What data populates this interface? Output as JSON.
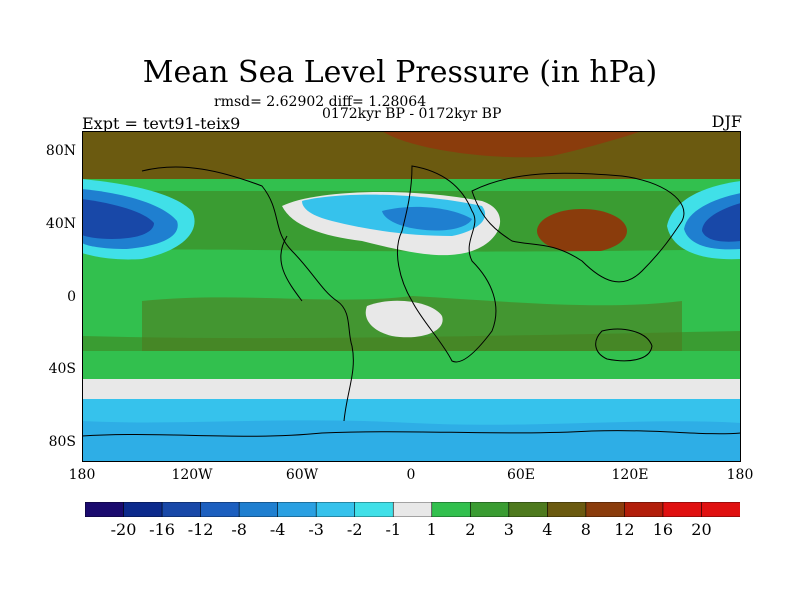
{
  "title": "Mean Sea Level Pressure (in hPa)",
  "stats": "rmsd= 2.62902 diff= 1.28064",
  "period": "0172kyr BP - 0172kyr BP",
  "experiment": "Expt = tevt91-teix9",
  "season": "DJF",
  "map": {
    "lat_labels": [
      "80N",
      "40N",
      "0",
      "40S",
      "80S"
    ],
    "lon_labels": [
      "180",
      "120W",
      "60W",
      "0",
      "60E",
      "120E",
      "180"
    ]
  },
  "colorbar": {
    "labels": [
      "-20",
      "-16",
      "-12",
      "-8",
      "-4",
      "-3",
      "-2",
      "-1",
      "1",
      "2",
      "3",
      "4",
      "8",
      "12",
      "16",
      "20"
    ],
    "colors": [
      "#1a0a6e",
      "#0c2a8c",
      "#1848a8",
      "#1c5fbf",
      "#1f7fd0",
      "#2aa0e2",
      "#36c2ec",
      "#40e0e8",
      "#e8e8e8",
      "#32c04e",
      "#3a9c32",
      "#4e7a1e",
      "#6b5a10",
      "#8a3c0c",
      "#b21e0a",
      "#e01010"
    ]
  }
}
